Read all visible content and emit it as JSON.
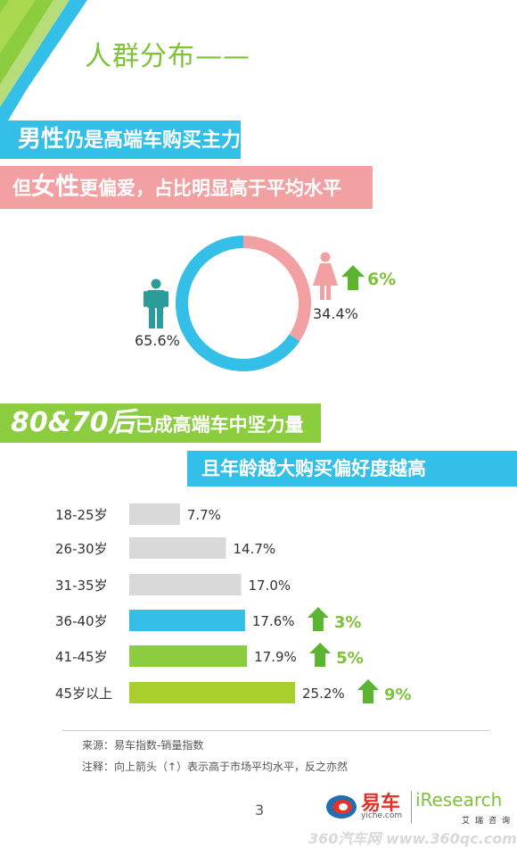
{
  "title": "人群分布——",
  "banners": {
    "gender_main": {
      "emph": "男性",
      "rest": "仍是高端车购买主力"
    },
    "gender_sub": {
      "pre": "但",
      "emph": "女性",
      "rest": "更偏爱，占比明显高于平均水平"
    },
    "age_main": {
      "emph": "80&70后",
      "rest": "已成高端车中坚力量"
    },
    "age_sub": "且年龄越大购买偏好度越高"
  },
  "colors": {
    "blue": "#33bfe8",
    "pink": "#f3a0a2",
    "green": "#8ccd3f",
    "gray": "#d9d9d9",
    "teal": "#2a9d9a",
    "arrow": "#5cb531"
  },
  "chart_data": [
    {
      "type": "pie",
      "categories": [
        "女性",
        "男性"
      ],
      "values": [
        34.4,
        65.6
      ],
      "value_labels": [
        "34.4%",
        "65.6%"
      ],
      "icons": [
        "female-icon",
        "male-icon"
      ],
      "colors": [
        "#f3a0a2",
        "#33bfe8"
      ],
      "annotation": {
        "category": "女性",
        "direction": "up",
        "label": "6%"
      }
    },
    {
      "type": "bar",
      "orientation": "horizontal",
      "categories": [
        "18-25岁",
        "26-30岁",
        "31-35岁",
        "36-40岁",
        "41-45岁",
        "45岁以上"
      ],
      "values": [
        7.7,
        14.7,
        17.0,
        17.6,
        17.9,
        25.2
      ],
      "value_labels": [
        "7.7%",
        "14.7%",
        "17.0%",
        "17.6%",
        "17.9%",
        "25.2%"
      ],
      "bar_colors": [
        "#d9d9d9",
        "#d9d9d9",
        "#d9d9d9",
        "#33bfe8",
        "#8ccd3f",
        "#a9cf2c"
      ],
      "annotations": [
        {
          "category": "36-40岁",
          "direction": "up",
          "label": "3%"
        },
        {
          "category": "41-45岁",
          "direction": "up",
          "label": "5%"
        },
        {
          "category": "45岁以上",
          "direction": "up",
          "label": "9%"
        }
      ],
      "xlim": [
        0,
        25.2
      ]
    }
  ],
  "footer": {
    "source": "来源：易车指数-销量指数",
    "note": "注释：向上箭头（↑）表示高于市场平均水平，反之亦然",
    "page": "3"
  },
  "logos": {
    "yiche_name": "易车",
    "yiche_url": "yiche.com",
    "iresearch_name": "iResearch",
    "iresearch_cn": "艾瑞咨询",
    "watermark": "360汽车网 www.360qc.com"
  }
}
